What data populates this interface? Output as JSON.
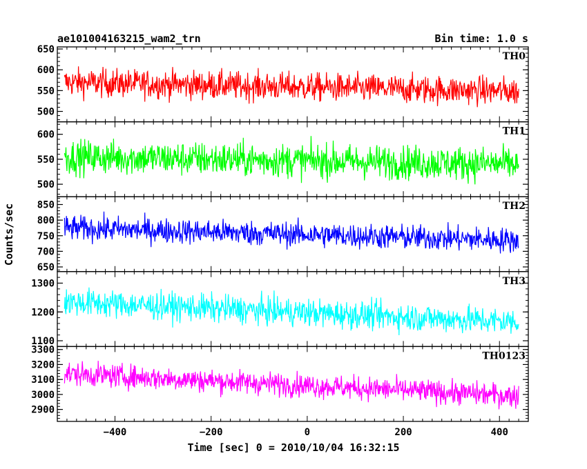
{
  "header": {
    "title": "ae101004163215_wam2_trn",
    "bin_time": "Bin time: 1.0 s"
  },
  "chart_data": {
    "type": "line",
    "xlabel": "Time [sec] 0 = 2010/10/04 16:32:15",
    "ylabel": "Counts/sec",
    "xlim": [
      -520,
      460
    ],
    "x_ticks": [
      -400,
      -200,
      0,
      200,
      400
    ],
    "x_range": [
      -505,
      440
    ],
    "panels": [
      {
        "name": "TH0",
        "color": "#ff0000",
        "ylim": [
          475,
          655
        ],
        "y_ticks": [
          500,
          550,
          600,
          650
        ],
        "mean_start": 570,
        "mean_end": 548,
        "noise": 24
      },
      {
        "name": "TH1",
        "color": "#00ff00",
        "ylim": [
          475,
          625
        ],
        "y_ticks": [
          500,
          550,
          600
        ],
        "mean_start": 555,
        "mean_end": 540,
        "noise": 24
      },
      {
        "name": "TH2",
        "color": "#0000ff",
        "ylim": [
          635,
          875
        ],
        "y_ticks": [
          650,
          700,
          750,
          800,
          850
        ],
        "mean_start": 775,
        "mean_end": 735,
        "noise": 28
      },
      {
        "name": "TH3",
        "color": "#00ffff",
        "ylim": [
          1080,
          1340
        ],
        "y_ticks": [
          1100,
          1200,
          1300
        ],
        "mean_start": 1235,
        "mean_end": 1165,
        "noise": 34
      },
      {
        "name": "TH0123",
        "color": "#ff00ff",
        "ylim": [
          2820,
          3320
        ],
        "y_ticks": [
          2900,
          3000,
          3100,
          3200,
          3300
        ],
        "mean_start": 3140,
        "mean_end": 2990,
        "noise": 55
      }
    ]
  }
}
